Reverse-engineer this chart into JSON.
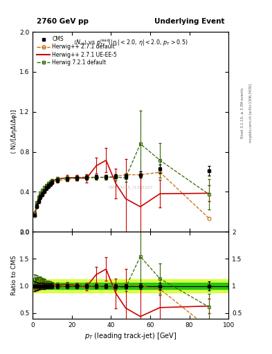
{
  "title_left": "2760 GeV pp",
  "title_right": "Underlying Event",
  "ylabel_main": "⟨ N⟩/[ΔηΔ(Δφ)]",
  "ylabel_ratio": "Ratio to CMS",
  "xlabel": "p_{T} (leading track-jet) [GeV]",
  "right_label1": "Rivet 3.1.10, ≥ 3.3M events",
  "right_label2": "mcplots.cern.ch [arXiv:1306.3436]",
  "watermark": "CMS_2015_I1385107",
  "xlim": [
    0,
    100
  ],
  "ylim_main": [
    0,
    2.0
  ],
  "ylim_ratio": [
    0.4,
    2.0
  ],
  "yticks_main": [
    0.0,
    0.4,
    0.8,
    1.2,
    1.6,
    2.0
  ],
  "yticks_ratio": [
    0.5,
    1.0,
    1.5,
    2.0
  ],
  "cms_x": [
    1.0,
    2.0,
    3.0,
    4.0,
    5.0,
    6.0,
    7.0,
    8.0,
    9.0,
    10.0,
    12.5,
    17.5,
    22.5,
    27.5,
    32.5,
    37.5,
    42.5,
    47.5,
    55.0,
    65.0,
    90.0
  ],
  "cms_y": [
    0.165,
    0.255,
    0.305,
    0.345,
    0.375,
    0.405,
    0.435,
    0.455,
    0.475,
    0.495,
    0.515,
    0.525,
    0.535,
    0.54,
    0.545,
    0.545,
    0.555,
    0.555,
    0.57,
    0.63,
    0.61
  ],
  "cms_yerr": [
    0.015,
    0.02,
    0.02,
    0.02,
    0.02,
    0.02,
    0.02,
    0.02,
    0.02,
    0.02,
    0.02,
    0.02,
    0.02,
    0.02,
    0.02,
    0.02,
    0.02,
    0.02,
    0.03,
    0.04,
    0.05
  ],
  "hdef_x": [
    1.0,
    2.0,
    3.0,
    4.0,
    5.0,
    6.0,
    7.0,
    8.0,
    9.0,
    10.0,
    12.5,
    17.5,
    22.5,
    27.5,
    32.5,
    37.5,
    42.5,
    47.5,
    55.0,
    65.0,
    90.0
  ],
  "hdef_y": [
    0.16,
    0.25,
    0.305,
    0.345,
    0.375,
    0.405,
    0.435,
    0.455,
    0.475,
    0.495,
    0.51,
    0.525,
    0.535,
    0.54,
    0.54,
    0.545,
    0.555,
    0.57,
    0.57,
    0.595,
    0.135
  ],
  "hue5_x": [
    1.0,
    2.0,
    3.0,
    4.0,
    5.0,
    6.0,
    7.0,
    8.0,
    9.0,
    10.0,
    12.5,
    17.5,
    22.5,
    27.5,
    32.5,
    37.5,
    42.5,
    47.5,
    55.0,
    65.0,
    90.0
  ],
  "hue5_y": [
    0.16,
    0.25,
    0.305,
    0.35,
    0.38,
    0.415,
    0.44,
    0.465,
    0.485,
    0.505,
    0.525,
    0.54,
    0.54,
    0.535,
    0.66,
    0.715,
    0.48,
    0.33,
    0.25,
    0.38,
    0.385
  ],
  "hue5_yerr": [
    0.01,
    0.015,
    0.015,
    0.015,
    0.015,
    0.015,
    0.015,
    0.015,
    0.015,
    0.02,
    0.02,
    0.025,
    0.03,
    0.04,
    0.08,
    0.12,
    0.15,
    0.4,
    0.35,
    0.14,
    0.08
  ],
  "h721_x": [
    1.0,
    2.0,
    3.0,
    4.0,
    5.0,
    6.0,
    7.0,
    8.0,
    9.0,
    10.0,
    12.5,
    17.5,
    22.5,
    27.5,
    32.5,
    37.5,
    42.5,
    47.5,
    55.0,
    65.0,
    90.0
  ],
  "h721_y": [
    0.185,
    0.29,
    0.345,
    0.39,
    0.415,
    0.445,
    0.465,
    0.485,
    0.5,
    0.515,
    0.53,
    0.54,
    0.545,
    0.545,
    0.545,
    0.545,
    0.545,
    0.54,
    0.88,
    0.715,
    0.375
  ],
  "h721_yerr": [
    0.015,
    0.015,
    0.015,
    0.015,
    0.015,
    0.015,
    0.015,
    0.015,
    0.015,
    0.015,
    0.015,
    0.015,
    0.015,
    0.02,
    0.025,
    0.025,
    0.03,
    0.04,
    0.33,
    0.175,
    0.15
  ],
  "cms_color": "#000000",
  "hdef_color": "#cc6600",
  "hue5_color": "#cc0000",
  "h721_color": "#336600",
  "band_yellow": "#ccff00",
  "band_green": "#00bb00"
}
